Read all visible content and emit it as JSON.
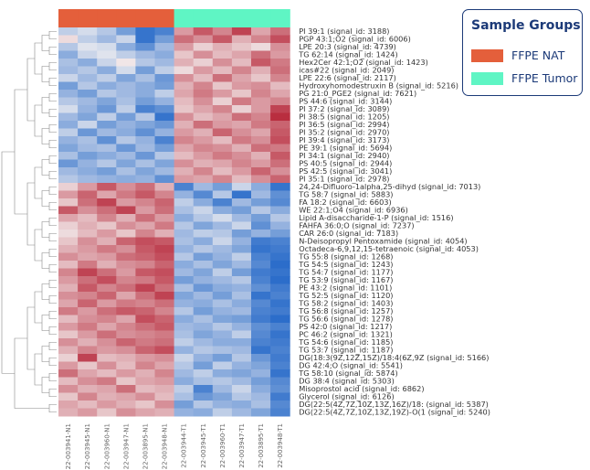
{
  "legend": {
    "title": "Sample Groups",
    "groups": [
      {
        "name": "FFPE NAT",
        "color": "#e45f3b"
      },
      {
        "name": "FFPE Tumor",
        "color": "#5ff5c4"
      }
    ]
  },
  "chart_data": {
    "type": "heatmap",
    "colormap": {
      "low": "#2166c8",
      "mid": "#f4f1f1",
      "high": "#b2182b"
    },
    "columns": [
      {
        "name": "22-003941-N1",
        "group": "FFPE NAT"
      },
      {
        "name": "22-003945-N1",
        "group": "FFPE NAT"
      },
      {
        "name": "22-003960-N1",
        "group": "FFPE NAT"
      },
      {
        "name": "22-003947-N1",
        "group": "FFPE NAT"
      },
      {
        "name": "22-003895-N1",
        "group": "FFPE NAT"
      },
      {
        "name": "22-003948-N1",
        "group": "FFPE NAT"
      },
      {
        "name": "22-003944-T1",
        "group": "FFPE Tumor"
      },
      {
        "name": "22-003945-T1",
        "group": "FFPE Tumor"
      },
      {
        "name": "22-003960-T1",
        "group": "FFPE Tumor"
      },
      {
        "name": "22-003947-T1",
        "group": "FFPE Tumor"
      },
      {
        "name": "22-003895-T1",
        "group": "FFPE Tumor"
      },
      {
        "name": "22-003948-T1",
        "group": "FFPE Tumor"
      }
    ],
    "rows": [
      "PI 39:1 (signal_id: 3188)",
      "PGP 43:1;O2 (signal_id: 6006)",
      "LPE 20:3 (signal_id: 4739)",
      "TG 62:14 (signal_id: 1424)",
      "Hex2Cer 42:1;O2 (signal_id: 1423)",
      "icas#22 (signal_id: 2049)",
      "LPE 22:6 (signal_id: 2117)",
      "Hydroxyhomodestruxin B (signal_id: 5216)",
      "PG 21:0_PGE2 (signal_id: 7621)",
      "PS 44:6 (signal_id: 3144)",
      "PI 37:2 (signal_id: 3089)",
      "PI 38:5 (signal_id: 1205)",
      "PI 36:5 (signal_id: 2994)",
      "PI 35:2 (signal_id: 2970)",
      "PI 39:4 (signal_id: 3173)",
      "PE 39:1 (signal_id: 5694)",
      "PI 34:1 (signal_id: 2940)",
      "PS 40:5 (signal_id: 2944)",
      "PS 42:5 (signal_id: 3041)",
      "PI 35:1 (signal_id: 2978)",
      "24,24-Difluoro-1alpha,25-dihyd (signal_id: 7013)",
      "TG 58:7 (signal_id: 5883)",
      "FA 18:2 (signal_id: 6603)",
      "WE 22:1;O4 (signal_id: 6936)",
      "Lipid A-disaccharide-1-P (signal_id: 1516)",
      "FAHFA 36:0;O (signal_id: 7237)",
      "CAR 26:0 (signal_id: 7183)",
      "N-Deisopropyl Pentoxamide (signal_id: 4054)",
      "Octadeca-6,9,12,15-tetraenoic  (signal_id: 4053)",
      "TG 55:8 (signal_id: 1268)",
      "TG 54:5 (signal_id: 1243)",
      "TG 54:7 (signal_id: 1177)",
      "TG 53:9 (signal_id: 1167)",
      "PE 43:2 (signal_id: 1101)",
      "TG 52:5 (signal_id: 1120)",
      "TG 58:2 (signal_id: 1403)",
      "TG 56:8 (signal_id: 1257)",
      "TG 56:6 (signal_id: 1278)",
      "PS 42:0 (signal_id: 1217)",
      "PC 46:2 (signal_id: 1321)",
      "TG 54:6 (signal_id: 1185)",
      "TG 53:7 (signal_id: 1187)",
      "DG(18:3(9Z,12Z,15Z)/18:4(6Z,9Z (signal_id: 5166)",
      "DG 42:4;O (signal_id: 5541)",
      "TG 58:10 (signal_id: 5874)",
      "DG 38:4 (signal_id: 5303)",
      "Misoprostol acid (signal_id: 6862)",
      "Glycerol (signal_id: 6126)",
      "DG(22:5(4Z,7Z,10Z,13Z,16Z)/18: (signal_id: 5387)",
      "DG(22:5(4Z,7Z,10Z,13Z,19Z)-O(1 (signal_id: 5240)"
    ],
    "values": [
      [
        -0.5,
        -0.3,
        -0.6,
        -1.2,
        -1.8,
        -1.6,
        0.8,
        1.4,
        1.0,
        1.6,
        0.7,
        1.2
      ],
      [
        0.2,
        -0.5,
        -0.8,
        -0.4,
        -1.8,
        -1.2,
        1.2,
        0.9,
        1.4,
        0.6,
        1.0,
        1.5
      ],
      [
        -0.6,
        -0.2,
        -0.3,
        -1.0,
        -1.4,
        -0.8,
        0.8,
        0.3,
        0.6,
        0.4,
        0.2,
        0.9
      ],
      [
        -1.0,
        -0.4,
        -0.2,
        -0.5,
        -0.8,
        -1.0,
        0.4,
        0.9,
        0.5,
        0.7,
        1.2,
        0.8
      ],
      [
        -0.7,
        -1.0,
        -0.4,
        0.1,
        -0.6,
        -0.8,
        0.6,
        0.3,
        0.9,
        0.5,
        1.4,
        1.1
      ],
      [
        -0.8,
        -0.6,
        -1.0,
        -0.3,
        -1.2,
        -0.5,
        0.2,
        0.8,
        0.5,
        1.0,
        0.6,
        1.2
      ],
      [
        -0.4,
        -0.8,
        -0.5,
        -1.1,
        -0.7,
        -1.3,
        0.9,
        0.5,
        1.2,
        0.7,
        0.4,
        1.0
      ],
      [
        -1.2,
        -0.6,
        -1.0,
        -0.8,
        -1.0,
        -1.2,
        0.6,
        1.0,
        0.4,
        0.8,
        0.9,
        0.5
      ],
      [
        -0.9,
        -1.2,
        -0.6,
        -0.8,
        -1.0,
        -0.5,
        0.7,
        1.1,
        0.8,
        0.4,
        1.0,
        0.7
      ],
      [
        -0.6,
        -0.8,
        -1.1,
        -0.7,
        -1.2,
        -0.9,
        0.5,
        0.9,
        0.3,
        1.1,
        0.8,
        1.0
      ],
      [
        -0.3,
        -0.9,
        -1.3,
        -0.5,
        -1.6,
        -1.4,
        0.4,
        0.7,
        1.0,
        0.3,
        0.8,
        1.6
      ],
      [
        -0.8,
        -1.1,
        -0.5,
        -1.2,
        -0.6,
        -1.8,
        0.9,
        0.5,
        0.7,
        1.2,
        1.0,
        1.8
      ],
      [
        -1.0,
        -0.4,
        -1.2,
        -0.9,
        -1.1,
        -1.3,
        0.6,
        1.2,
        0.8,
        0.7,
        1.1,
        1.3
      ],
      [
        -0.5,
        -1.3,
        -0.8,
        -1.0,
        -1.4,
        -0.9,
        0.8,
        0.6,
        1.3,
        0.9,
        0.7,
        1.4
      ],
      [
        -0.9,
        -0.7,
        -1.4,
        -0.6,
        -0.9,
        -1.6,
        1.0,
        0.8,
        0.5,
        1.1,
        0.9,
        1.5
      ],
      [
        -1.1,
        -0.8,
        -0.7,
        -1.3,
        -0.8,
        -1.2,
        0.7,
        1.0,
        0.9,
        0.6,
        1.2,
        1.1
      ],
      [
        -0.7,
        -1.2,
        -1.0,
        -0.8,
        -1.3,
        -0.6,
        0.5,
        0.8,
        1.1,
        0.9,
        0.6,
        1.4
      ],
      [
        -1.3,
        -0.9,
        -0.6,
        -1.1,
        -0.7,
        -1.1,
        0.9,
        0.6,
        0.7,
        1.0,
        0.8,
        1.2
      ],
      [
        -0.8,
        -1.0,
        -1.2,
        -0.7,
        -1.1,
        -0.8,
        0.6,
        1.0,
        0.5,
        0.8,
        1.3,
        0.9
      ],
      [
        -0.6,
        -0.8,
        -0.9,
        -1.0,
        -0.9,
        -1.4,
        0.8,
        0.7,
        1.0,
        0.5,
        0.9,
        1.3
      ],
      [
        0.3,
        0.8,
        1.4,
        0.9,
        1.2,
        0.6,
        -1.6,
        -0.8,
        -1.2,
        -0.4,
        -1.0,
        -1.8
      ],
      [
        0.8,
        1.3,
        0.7,
        1.1,
        1.4,
        1.0,
        -0.9,
        -1.5,
        -0.6,
        -1.8,
        -0.8,
        -1.4
      ],
      [
        0.4,
        1.2,
        1.6,
        0.8,
        1.0,
        1.3,
        -0.5,
        -1.0,
        -1.6,
        -0.8,
        -1.2,
        -1.5
      ],
      [
        1.4,
        0.9,
        1.2,
        1.6,
        0.8,
        1.2,
        -0.7,
        -0.4,
        -1.0,
        -1.2,
        -0.6,
        -1.0
      ],
      [
        0.7,
        0.5,
        1.0,
        0.6,
        1.2,
        0.8,
        -1.0,
        -0.6,
        -0.3,
        -0.8,
        -1.2,
        -0.6
      ],
      [
        0.3,
        0.6,
        0.4,
        0.9,
        0.7,
        1.1,
        -0.6,
        -1.1,
        -0.8,
        -0.4,
        -1.4,
        -0.9
      ],
      [
        0.2,
        0.5,
        0.8,
        0.4,
        1.0,
        0.6,
        -0.8,
        -0.5,
        -0.6,
        -1.2,
        -0.9,
        -1.2
      ],
      [
        0.4,
        0.9,
        0.6,
        1.3,
        1.5,
        1.4,
        -0.7,
        -1.0,
        -0.4,
        -0.9,
        -1.7,
        -1.6
      ],
      [
        0.6,
        0.8,
        1.1,
        0.9,
        1.4,
        1.6,
        -0.9,
        -0.6,
        -0.8,
        -1.1,
        -1.8,
        -1.7
      ],
      [
        0.9,
        0.7,
        0.8,
        1.2,
        1.3,
        1.5,
        -0.6,
        -1.2,
        -0.9,
        -0.5,
        -1.6,
        -1.8
      ],
      [
        0.5,
        1.1,
        0.6,
        0.9,
        1.0,
        1.3,
        -1.0,
        -0.7,
        -1.1,
        -0.8,
        -1.5,
        -1.9
      ],
      [
        1.0,
        1.6,
        1.2,
        0.8,
        1.4,
        1.5,
        -0.8,
        -1.1,
        -0.5,
        -1.2,
        -1.7,
        -1.8
      ],
      [
        0.8,
        1.2,
        1.5,
        1.0,
        1.1,
        1.4,
        -1.2,
        -0.9,
        -0.8,
        -0.6,
        -1.6,
        -1.9
      ],
      [
        0.6,
        1.4,
        1.0,
        1.2,
        1.6,
        1.2,
        -0.7,
        -1.3,
        -1.0,
        -0.9,
        -1.4,
        -1.7
      ],
      [
        0.9,
        1.0,
        1.3,
        0.7,
        1.2,
        1.6,
        -1.1,
        -0.8,
        -1.2,
        -0.7,
        -1.8,
        -1.6
      ],
      [
        0.7,
        1.3,
        0.8,
        1.1,
        1.0,
        1.2,
        -0.9,
        -1.0,
        -0.7,
        -1.0,
        -1.5,
        -1.8
      ],
      [
        1.1,
        0.8,
        1.2,
        1.4,
        1.3,
        1.0,
        -0.6,
        -1.2,
        -0.9,
        -0.8,
        -1.6,
        -1.7
      ],
      [
        0.5,
        0.9,
        1.0,
        0.7,
        1.5,
        1.3,
        -1.0,
        -0.7,
        -1.1,
        -1.2,
        -1.7,
        -1.9
      ],
      [
        0.8,
        1.1,
        0.7,
        1.0,
        1.2,
        1.4,
        -0.8,
        -0.9,
        -0.6,
        -0.9,
        -1.4,
        -1.6
      ],
      [
        0.4,
        0.8,
        1.2,
        0.9,
        1.0,
        1.1,
        -0.7,
        -1.1,
        -0.9,
        -0.5,
        -1.5,
        -1.8
      ],
      [
        0.9,
        0.6,
        0.9,
        1.3,
        1.1,
        1.2,
        -0.5,
        -0.8,
        -1.0,
        -1.0,
        -1.6,
        -1.7
      ],
      [
        0.6,
        1.0,
        0.8,
        0.9,
        1.3,
        1.5,
        -0.9,
        -0.6,
        -0.7,
        -0.8,
        -1.8,
        -1.6
      ],
      [
        0.3,
        1.6,
        0.5,
        0.6,
        0.8,
        0.9,
        -0.4,
        -0.9,
        -1.2,
        -0.6,
        -1.3,
        -1.7
      ],
      [
        0.8,
        0.4,
        0.9,
        0.5,
        1.0,
        0.7,
        -0.6,
        -1.2,
        -0.5,
        -0.9,
        -1.1,
        -1.6
      ],
      [
        1.2,
        0.7,
        0.5,
        0.8,
        0.6,
        1.0,
        -0.8,
        -0.5,
        -1.0,
        -1.1,
        -0.9,
        -1.8
      ],
      [
        0.5,
        0.9,
        1.1,
        0.4,
        0.7,
        0.8,
        -1.0,
        -0.7,
        -0.6,
        -0.8,
        -1.2,
        -1.5
      ],
      [
        0.9,
        0.6,
        0.7,
        1.2,
        0.5,
        0.6,
        -0.5,
        -1.6,
        -0.8,
        -0.4,
        -1.0,
        -1.4
      ],
      [
        0.4,
        1.0,
        0.6,
        0.7,
        0.9,
        0.5,
        -0.7,
        -1.3,
        -1.1,
        -0.6,
        -0.8,
        -1.7
      ],
      [
        0.7,
        0.5,
        0.8,
        0.6,
        0.4,
        0.9,
        -1.2,
        -0.6,
        -0.9,
        -1.0,
        -0.7,
        -1.5
      ],
      [
        0.6,
        0.8,
        0.4,
        0.9,
        0.7,
        0.6,
        -0.9,
        -1.0,
        -0.5,
        -0.8,
        -1.1,
        -1.6
      ]
    ],
    "vmin": -2,
    "vmax": 2
  }
}
